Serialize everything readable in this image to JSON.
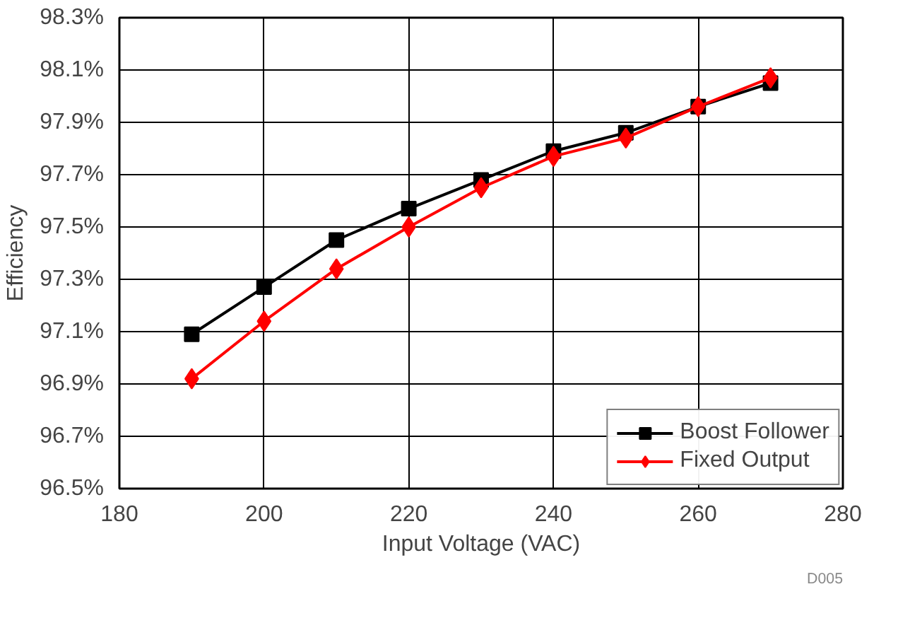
{
  "chart_data": {
    "type": "line",
    "xlabel": "Input Voltage (VAC)",
    "ylabel": "Efficiency",
    "x": [
      190,
      200,
      210,
      220,
      230,
      240,
      250,
      260,
      270
    ],
    "series": [
      {
        "name": "Boost Follower",
        "color": "#000000",
        "marker": "square",
        "values": [
          97.09,
          97.27,
          97.45,
          97.57,
          97.68,
          97.79,
          97.86,
          97.96,
          98.05
        ]
      },
      {
        "name": "Fixed Output",
        "color": "#ff0000",
        "marker": "diamond",
        "values": [
          96.92,
          97.14,
          97.34,
          97.5,
          97.65,
          97.77,
          97.84,
          97.96,
          98.07
        ]
      }
    ],
    "xlim": [
      180,
      280
    ],
    "xticks": [
      180,
      200,
      220,
      240,
      260,
      280
    ],
    "ylim": [
      96.5,
      98.3
    ],
    "yticks": [
      {
        "value": 96.5,
        "label": "96.5%"
      },
      {
        "value": 96.7,
        "label": "96.7%"
      },
      {
        "value": 96.9,
        "label": "96.9%"
      },
      {
        "value": 97.1,
        "label": "97.1%"
      },
      {
        "value": 97.3,
        "label": "97.3%"
      },
      {
        "value": 97.5,
        "label": "97.5%"
      },
      {
        "value": 97.7,
        "label": "97.7%"
      },
      {
        "value": 97.9,
        "label": "97.9%"
      },
      {
        "value": 98.1,
        "label": "98.1%"
      },
      {
        "value": 98.3,
        "label": "98.3%"
      }
    ],
    "grid": true,
    "legend": "bottom right",
    "line_style": "solid",
    "annotations": [
      "D005"
    ]
  }
}
